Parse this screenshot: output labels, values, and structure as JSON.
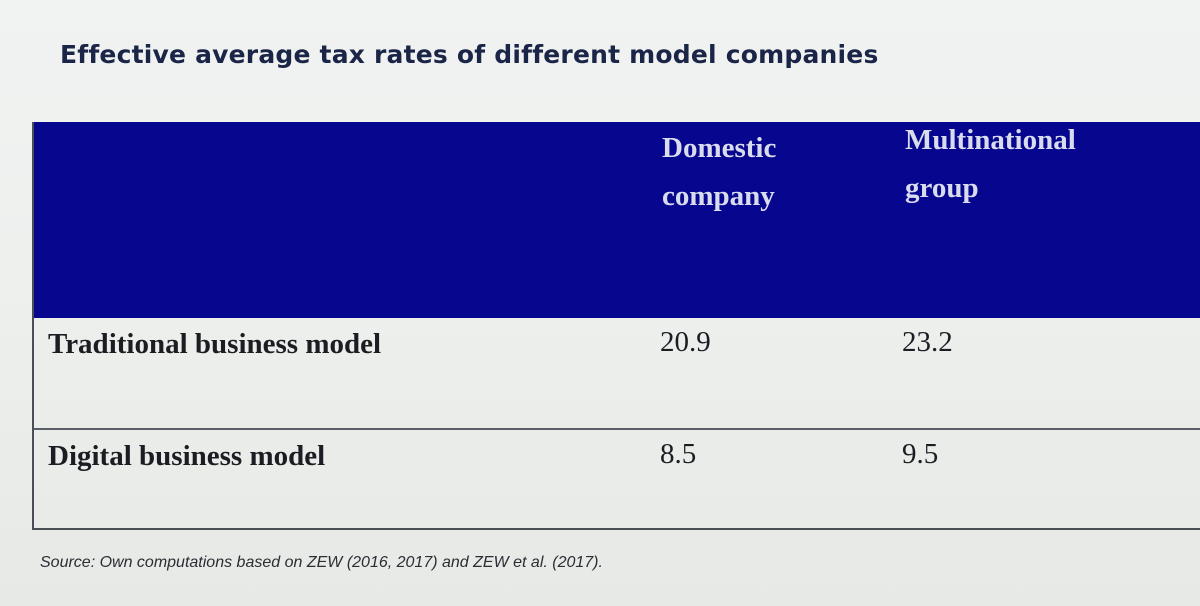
{
  "title": "Effective average tax rates of different model companies",
  "table": {
    "columns": [
      {
        "lines": [
          "Domestic",
          "company"
        ]
      },
      {
        "lines": [
          "Multinational",
          "group"
        ]
      }
    ],
    "rows": [
      {
        "label": "Traditional business model",
        "values": [
          "20.9",
          "23.2"
        ]
      },
      {
        "label": "Digital business model",
        "values": [
          "8.5",
          "9.5"
        ]
      }
    ]
  },
  "source": "Source: Own computations based on ZEW (2016, 2017) and ZEW et al. (2017).",
  "colors": {
    "header_background": "#07068f",
    "header_text": "#d9dcec",
    "title_text": "#1a2547"
  }
}
